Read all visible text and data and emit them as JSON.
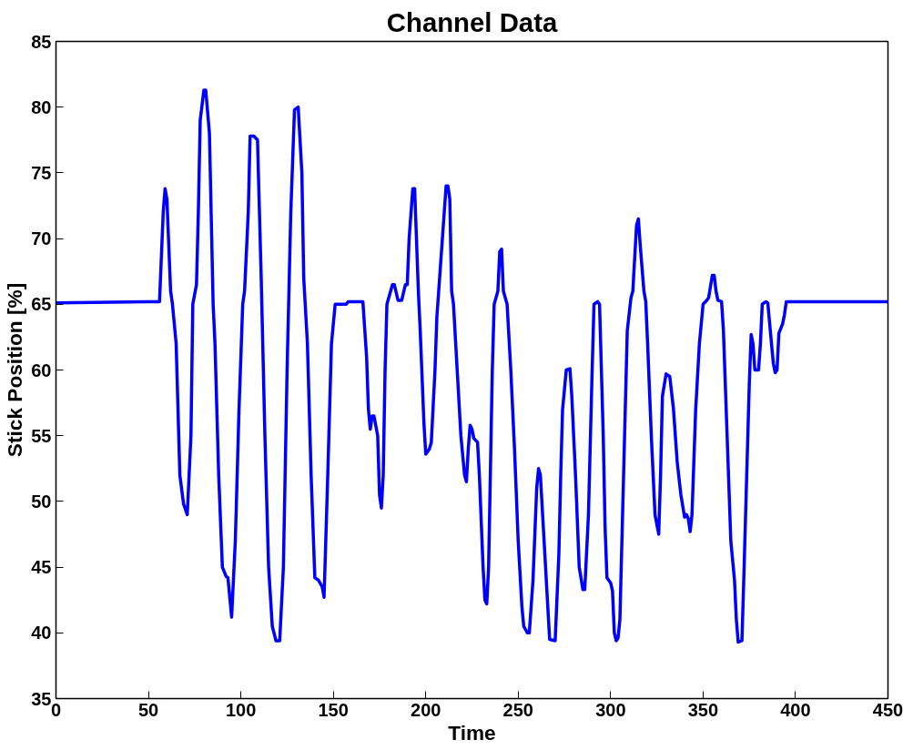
{
  "chart_data": {
    "type": "line",
    "title": "Channel Data",
    "xlabel": "Time",
    "ylabel": "Stick Position [%]",
    "xlim": [
      0,
      450
    ],
    "xticks": [
      0,
      50,
      100,
      150,
      200,
      250,
      300,
      350,
      400,
      450
    ],
    "ylim": [
      35,
      85
    ],
    "yticks": [
      35,
      40,
      45,
      50,
      55,
      60,
      65,
      70,
      75,
      80,
      85
    ],
    "grid": false,
    "marker": "none",
    "line_style": "solid",
    "series": [
      {
        "color": "#0000ff",
        "x": [
          0,
          50,
          56,
          58,
          59,
          60,
          62,
          63,
          65,
          67,
          69,
          71,
          73,
          74,
          76,
          77,
          78,
          80,
          81,
          83,
          85,
          86,
          88,
          90,
          92,
          93,
          95,
          97,
          99,
          101,
          102,
          104,
          105,
          107,
          109,
          111,
          113,
          115,
          117,
          119,
          121,
          123,
          125,
          127,
          129,
          131,
          133,
          134,
          136,
          138,
          140,
          142,
          144,
          145,
          147,
          149,
          151,
          155,
          157,
          158,
          160,
          164,
          166,
          168,
          169,
          170,
          171,
          172,
          174,
          175,
          176,
          177,
          178,
          179,
          180,
          182,
          183,
          185,
          187,
          189,
          190,
          191,
          193,
          194,
          196,
          197,
          199,
          200,
          202,
          203,
          205,
          206,
          208,
          210,
          211,
          212,
          213,
          214,
          215,
          217,
          219,
          221,
          222,
          223,
          224,
          225,
          226,
          228,
          229,
          231,
          232,
          233,
          234,
          236,
          237,
          239,
          240,
          241,
          242,
          244,
          246,
          248,
          250,
          252,
          253,
          255,
          256,
          258,
          260,
          261,
          262,
          264,
          266,
          267,
          270,
          272,
          273,
          274,
          276,
          278,
          279,
          281,
          283,
          285,
          286,
          288,
          290,
          291,
          293,
          294,
          296,
          297,
          298,
          300,
          301,
          302,
          303,
          304,
          305,
          307,
          309,
          311,
          312,
          314,
          315,
          316,
          318,
          319,
          320,
          322,
          324,
          326,
          327,
          328,
          330,
          332,
          334,
          336,
          338,
          340,
          341,
          342,
          343,
          344,
          346,
          348,
          350,
          352,
          353,
          355,
          356,
          357,
          358,
          360,
          361,
          363,
          365,
          367,
          368,
          369,
          371,
          372,
          374,
          375,
          376,
          377,
          378,
          380,
          381,
          382,
          384,
          385,
          387,
          388,
          389,
          390,
          391,
          393,
          394,
          395,
          398,
          450
        ],
        "values": [
          65.1,
          65.2,
          65.2,
          72,
          73.8,
          73,
          66,
          65,
          62,
          52,
          49.8,
          49,
          55,
          65,
          66.5,
          72,
          79,
          81.3,
          81.3,
          78,
          65,
          62,
          52,
          45,
          44.3,
          44.2,
          41.2,
          47,
          57,
          65,
          66,
          72,
          77.8,
          77.8,
          77.5,
          67,
          55,
          45,
          40.5,
          39.4,
          39.4,
          45,
          60,
          72,
          79.8,
          80,
          75,
          67,
          62,
          52,
          44.2,
          44,
          43.5,
          42.7,
          52,
          62,
          65,
          65,
          65,
          65.2,
          65.2,
          65.2,
          65.2,
          61,
          57,
          55.5,
          56.5,
          56.5,
          55,
          50.5,
          49.5,
          52,
          60,
          65,
          65.5,
          66.5,
          66.5,
          65.3,
          65.3,
          66.5,
          66.5,
          70,
          73.8,
          73.8,
          66,
          63,
          56,
          53.6,
          54,
          54.5,
          60,
          64,
          68,
          72,
          74,
          74,
          73,
          66,
          65,
          60,
          55,
          52,
          51.5,
          54,
          55.8,
          55.5,
          54.8,
          54.5,
          52,
          45,
          42.5,
          42.2,
          45,
          60,
          65,
          66,
          69,
          69.2,
          66,
          65,
          60,
          54,
          47,
          42,
          40.5,
          40,
          40,
          44,
          51,
          52.5,
          52,
          47,
          42,
          39.5,
          39.4,
          46,
          52,
          57,
          60,
          60.1,
          58,
          52,
          45,
          43.3,
          43.3,
          49,
          60,
          65,
          65.2,
          65,
          55,
          48,
          44.2,
          43.8,
          43.2,
          40,
          39.4,
          39.6,
          41,
          52,
          63,
          65.5,
          66,
          71,
          71.5,
          69.5,
          66,
          65.2,
          62,
          55,
          49,
          47.5,
          52,
          58,
          59.7,
          59.5,
          57,
          53,
          50.5,
          48.8,
          49,
          48.7,
          47.7,
          49,
          57,
          62,
          65,
          65.3,
          65.5,
          67.2,
          67.2,
          66,
          65.3,
          65.2,
          63,
          55,
          47,
          44,
          41,
          39.3,
          39.4,
          44,
          54,
          59,
          62.7,
          62,
          60,
          60,
          62,
          65,
          65.2,
          65.1,
          62,
          60.5,
          59.8,
          60,
          62.8,
          63.5,
          64.2,
          65.2,
          65.2,
          65.2
        ]
      }
    ]
  }
}
